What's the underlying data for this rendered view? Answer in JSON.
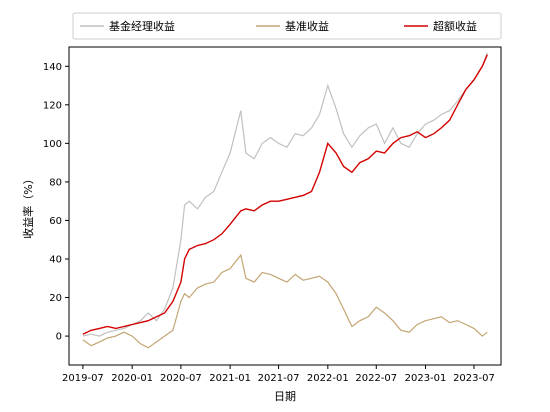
{
  "chart_data": {
    "type": "line",
    "title": "",
    "xlabel": "日期",
    "ylabel": "收益率（%）",
    "x_ticks": [
      "2019-07",
      "2020-01",
      "2020-07",
      "2021-01",
      "2021-07",
      "2022-01",
      "2022-07",
      "2023-01",
      "2023-07"
    ],
    "y_ticks": [
      0,
      20,
      40,
      60,
      80,
      100,
      120,
      140
    ],
    "xlim": [
      "2019-05-10",
      "2023-10-10"
    ],
    "ylim": [
      -15,
      150
    ],
    "grid": false,
    "legend_position": "top, outside plot",
    "series": [
      {
        "name": "基金经理收益",
        "color": "#c0c0c0",
        "x": [
          "2019-07-01",
          "2019-08-01",
          "2019-09-01",
          "2019-10-01",
          "2019-11-01",
          "2019-12-01",
          "2020-01-01",
          "2020-02-01",
          "2020-03-01",
          "2020-04-01",
          "2020-05-01",
          "2020-06-01",
          "2020-07-01",
          "2020-07-15",
          "2020-08-01",
          "2020-09-01",
          "2020-10-01",
          "2020-11-01",
          "2020-12-01",
          "2021-01-01",
          "2021-02-10",
          "2021-03-01",
          "2021-04-01",
          "2021-05-01",
          "2021-06-01",
          "2021-07-01",
          "2021-08-01",
          "2021-09-01",
          "2021-10-01",
          "2021-11-01",
          "2021-12-01",
          "2022-01-01",
          "2022-02-01",
          "2022-03-01",
          "2022-04-01",
          "2022-05-01",
          "2022-06-01",
          "2022-07-01",
          "2022-08-01",
          "2022-09-01",
          "2022-10-01",
          "2022-11-01",
          "2022-12-01",
          "2023-01-01",
          "2023-02-01",
          "2023-03-01",
          "2023-04-01",
          "2023-05-01",
          "2023-06-01",
          "2023-07-01",
          "2023-08-01",
          "2023-08-20"
        ],
        "y": [
          0,
          1,
          0,
          2,
          3,
          4,
          6,
          8,
          12,
          8,
          14,
          25,
          50,
          68,
          70,
          66,
          72,
          75,
          85,
          95,
          117,
          95,
          92,
          100,
          103,
          100,
          98,
          105,
          104,
          108,
          115,
          130,
          118,
          105,
          98,
          104,
          108,
          110,
          100,
          108,
          100,
          98,
          105,
          110,
          112,
          115,
          117,
          122,
          128,
          133,
          140,
          147
        ]
      },
      {
        "name": "基准收益",
        "color": "#c4a574",
        "x": [
          "2019-07-01",
          "2019-08-01",
          "2019-09-01",
          "2019-10-01",
          "2019-11-01",
          "2019-12-01",
          "2020-01-01",
          "2020-02-01",
          "2020-03-01",
          "2020-04-01",
          "2020-05-01",
          "2020-06-01",
          "2020-07-01",
          "2020-07-15",
          "2020-08-01",
          "2020-09-01",
          "2020-10-01",
          "2020-11-01",
          "2020-12-01",
          "2021-01-01",
          "2021-02-10",
          "2021-03-01",
          "2021-04-01",
          "2021-05-01",
          "2021-06-01",
          "2021-07-01",
          "2021-08-01",
          "2021-09-01",
          "2021-10-01",
          "2021-11-01",
          "2021-12-01",
          "2022-01-01",
          "2022-02-01",
          "2022-03-01",
          "2022-04-01",
          "2022-05-01",
          "2022-06-01",
          "2022-07-01",
          "2022-08-01",
          "2022-09-01",
          "2022-10-01",
          "2022-11-01",
          "2022-12-01",
          "2023-01-01",
          "2023-02-01",
          "2023-03-01",
          "2023-04-01",
          "2023-05-01",
          "2023-06-01",
          "2023-07-01",
          "2023-08-01",
          "2023-08-20"
        ],
        "y": [
          -2,
          -5,
          -3,
          -1,
          0,
          2,
          0,
          -4,
          -6,
          -3,
          0,
          3,
          18,
          22,
          20,
          25,
          27,
          28,
          33,
          35,
          42,
          30,
          28,
          33,
          32,
          30,
          28,
          32,
          29,
          30,
          31,
          28,
          22,
          14,
          5,
          8,
          10,
          15,
          12,
          8,
          3,
          2,
          6,
          8,
          9,
          10,
          7,
          8,
          6,
          4,
          0,
          2
        ]
      },
      {
        "name": "超额收益",
        "color": "#d40000",
        "x": [
          "2019-07-01",
          "2019-08-01",
          "2019-09-01",
          "2019-10-01",
          "2019-11-01",
          "2019-12-01",
          "2020-01-01",
          "2020-02-01",
          "2020-03-01",
          "2020-04-01",
          "2020-05-01",
          "2020-06-01",
          "2020-07-01",
          "2020-07-15",
          "2020-08-01",
          "2020-09-01",
          "2020-10-01",
          "2020-11-01",
          "2020-12-01",
          "2021-01-01",
          "2021-02-10",
          "2021-03-01",
          "2021-04-01",
          "2021-05-01",
          "2021-06-01",
          "2021-07-01",
          "2021-08-01",
          "2021-09-01",
          "2021-10-01",
          "2021-11-01",
          "2021-12-01",
          "2022-01-01",
          "2022-02-01",
          "2022-03-01",
          "2022-04-01",
          "2022-05-01",
          "2022-06-01",
          "2022-07-01",
          "2022-08-01",
          "2022-09-01",
          "2022-10-01",
          "2022-11-01",
          "2022-12-01",
          "2023-01-01",
          "2023-02-01",
          "2023-03-01",
          "2023-04-01",
          "2023-05-01",
          "2023-06-01",
          "2023-07-01",
          "2023-08-01",
          "2023-08-20"
        ],
        "y": [
          1,
          3,
          4,
          5,
          4,
          5,
          6,
          7,
          8,
          10,
          12,
          18,
          28,
          40,
          45,
          47,
          48,
          50,
          53,
          58,
          65,
          66,
          65,
          68,
          70,
          70,
          71,
          72,
          73,
          75,
          85,
          100,
          95,
          88,
          85,
          90,
          92,
          96,
          95,
          100,
          103,
          104,
          106,
          103,
          105,
          108,
          112,
          120,
          128,
          133,
          140,
          146
        ]
      }
    ]
  }
}
